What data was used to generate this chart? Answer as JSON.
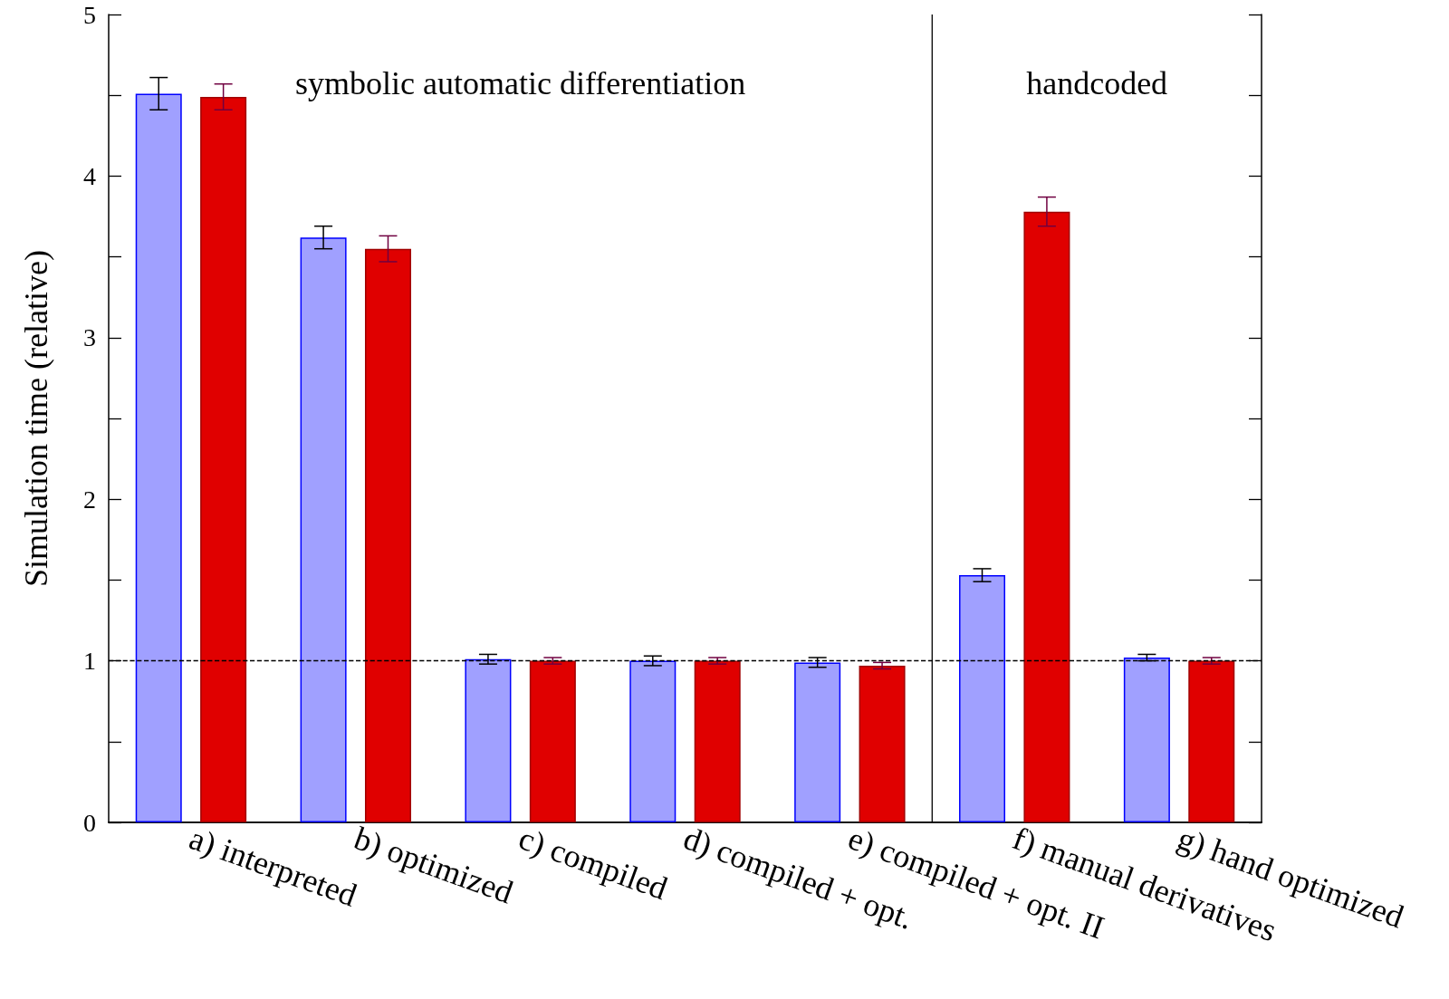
{
  "chart_data": {
    "type": "bar",
    "ylabel": "Simulation time (relative)",
    "categories": [
      "a) interpreted",
      "b) optimized",
      "c) compiled",
      "d) compiled + opt.",
      "e) compiled + opt. II",
      "f) manual derivatives",
      "g) hand optimized"
    ],
    "series": [
      {
        "color": "#a0a0ff",
        "values": [
          4.51,
          3.62,
          1.01,
          1.0,
          0.99,
          1.53,
          1.02
        ],
        "errors": [
          0.1,
          0.07,
          0.03,
          0.03,
          0.03,
          0.04,
          0.02
        ]
      },
      {
        "color": "#e00000",
        "values": [
          4.49,
          3.55,
          1.0,
          1.0,
          0.97,
          3.78,
          1.0
        ],
        "errors": [
          0.08,
          0.08,
          0.02,
          0.02,
          0.02,
          0.09,
          0.02
        ]
      }
    ],
    "ylim": [
      0,
      5
    ],
    "yticks": [
      0,
      {
        "value": 0.5,
        "label": null
      },
      1,
      {
        "value": 1.5,
        "label": null
      },
      2,
      {
        "value": 2.5,
        "label": null
      },
      3,
      {
        "value": 3.5,
        "label": null
      },
      4,
      {
        "value": 4.5,
        "label": null
      },
      5
    ],
    "ref_lines": [
      {
        "axis": "y",
        "value": 1,
        "line_style": "dashed"
      },
      {
        "axis": "x",
        "value": "f) manual derivatives",
        "line_style": "solid"
      }
    ],
    "annotations": [
      "symbolic automatic differentiation",
      "handcoded"
    ],
    "grid": false
  }
}
